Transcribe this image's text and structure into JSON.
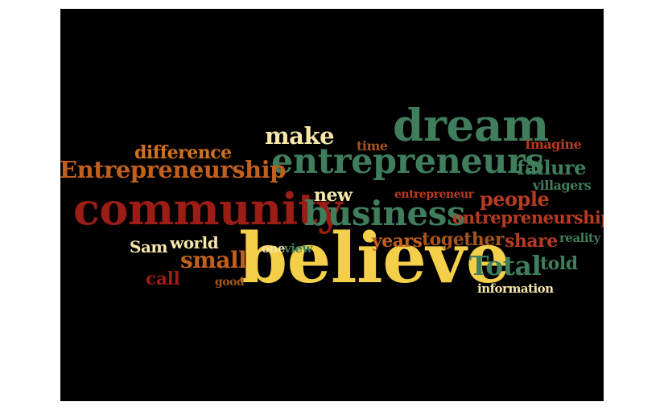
{
  "colors": {
    "background": "#000000",
    "page": "#ffffff",
    "yellow": "#f4cf4a",
    "cream": "#f7e7a8",
    "orange": "#d4731f",
    "brown": "#a5551d",
    "dark_orange": "#c1601e",
    "green": "#3f7d5c",
    "red": "#9c1c16",
    "brick": "#b83a21"
  },
  "words": [
    {
      "text": "believe",
      "color": "yellow"
    },
    {
      "text": "community",
      "color": "red"
    },
    {
      "text": "entrepreneurs",
      "color": "green"
    },
    {
      "text": "dream",
      "color": "green"
    },
    {
      "text": "business",
      "color": "green"
    },
    {
      "text": "Entrepreneurship",
      "color": "dark_orange"
    },
    {
      "text": "entrepreneurship",
      "color": "brick"
    },
    {
      "text": "make",
      "color": "cream"
    },
    {
      "text": "difference",
      "color": "orange"
    },
    {
      "text": "small",
      "color": "dark_orange"
    },
    {
      "text": "Total",
      "color": "green"
    },
    {
      "text": "failure",
      "color": "green"
    },
    {
      "text": "people",
      "color": "brick"
    },
    {
      "text": "new",
      "color": "cream"
    },
    {
      "text": "years",
      "color": "dark_orange"
    },
    {
      "text": "together",
      "color": "brown"
    },
    {
      "text": "share",
      "color": "brick"
    },
    {
      "text": "told",
      "color": "green"
    },
    {
      "text": "Sam",
      "color": "cream"
    },
    {
      "text": "world",
      "color": "cream"
    },
    {
      "text": "call",
      "color": "red"
    },
    {
      "text": "time",
      "color": "brown"
    },
    {
      "text": "Imagine",
      "color": "brick"
    },
    {
      "text": "villagers",
      "color": "green"
    },
    {
      "text": "entrepreneur",
      "color": "brick"
    },
    {
      "text": "reality",
      "color": "green"
    },
    {
      "text": "one",
      "color": "cream"
    },
    {
      "text": "view",
      "color": "green"
    },
    {
      "text": "good",
      "color": "brown"
    },
    {
      "text": "information",
      "color": "cream"
    }
  ]
}
